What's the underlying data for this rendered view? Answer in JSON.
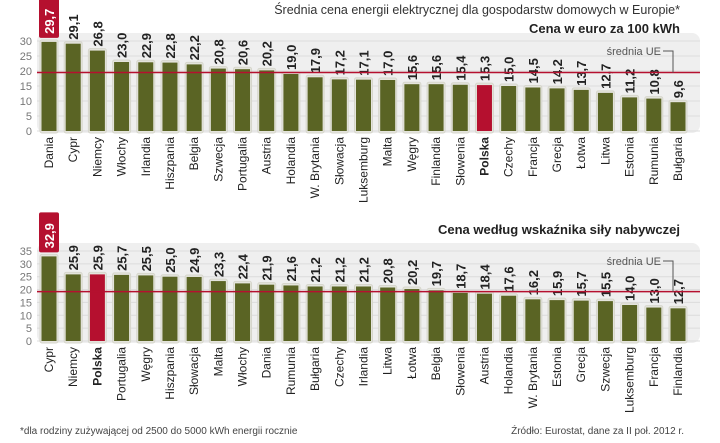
{
  "title": "Średnia cena energii elektrycznej dla gospodarstw domowych w Europie*",
  "footnote": "*dla rodziny zużywającej od 2500 do 5000 kWh energii rocznie",
  "source": "Źródło: Eurostat, dane za II poł. 2012 r.",
  "colors": {
    "bar": "#5a6424",
    "highlight": "#b5102f",
    "avg_line": "#b5102f",
    "panel": "#efefef"
  },
  "chart_data": [
    {
      "type": "bar",
      "subtitle": "Cena w euro za 100 kWh",
      "avg_label": "średnia UE",
      "avg_value": 19.5,
      "ylim": [
        0,
        30
      ],
      "yticks": [
        0,
        5,
        10,
        15,
        20,
        25,
        30
      ],
      "highlight_country": "Polska",
      "categories": [
        "Dania",
        "Cypr",
        "Niemcy",
        "Włochy",
        "Irlandia",
        "Hiszpania",
        "Belgia",
        "Szwecja",
        "Portugalia",
        "Austria",
        "Holandia",
        "W. Brytania",
        "Słowacja",
        "Luksemburg",
        "Malta",
        "Węgry",
        "Finlandia",
        "Słowenia",
        "Polska",
        "Czechy",
        "Francja",
        "Grecja",
        "Łotwa",
        "Litwa",
        "Estonia",
        "Rumunia",
        "Bułgaria"
      ],
      "values": [
        29.7,
        29.1,
        26.8,
        23.0,
        22.9,
        22.8,
        22.2,
        20.8,
        20.6,
        20.2,
        19.0,
        17.9,
        17.2,
        17.1,
        17.0,
        15.6,
        15.6,
        15.4,
        15.3,
        15.0,
        14.5,
        14.2,
        13.7,
        12.7,
        11.2,
        10.8,
        9.6
      ]
    },
    {
      "type": "bar",
      "subtitle": "Cena według wskaźnika siły nabywczej",
      "avg_label": "średnia UE",
      "avg_value": 19.2,
      "ylim": [
        0,
        35
      ],
      "yticks": [
        0,
        5,
        10,
        15,
        20,
        25,
        30,
        35
      ],
      "highlight_country": "Polska",
      "categories": [
        "Cypr",
        "Niemcy",
        "Polska",
        "Portugalia",
        "Węgry",
        "Hiszpania",
        "Słowacja",
        "Malta",
        "Włochy",
        "Dania",
        "Rumunia",
        "Bułgaria",
        "Czechy",
        "Irlandia",
        "Litwa",
        "Łotwa",
        "Belgia",
        "Słowenia",
        "Austria",
        "Holandia",
        "W. Brytania",
        "Estonia",
        "Grecja",
        "Szwecja",
        "Luksemburg",
        "Francja",
        "Finlandia"
      ],
      "values": [
        32.9,
        25.9,
        25.9,
        25.7,
        25.5,
        25.0,
        24.9,
        23.3,
        22.4,
        21.9,
        21.6,
        21.2,
        21.2,
        21.2,
        20.8,
        20.2,
        19.7,
        18.7,
        18.4,
        17.6,
        16.2,
        15.9,
        15.7,
        15.5,
        14.0,
        13.0,
        12.7
      ]
    }
  ]
}
